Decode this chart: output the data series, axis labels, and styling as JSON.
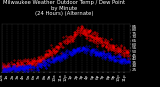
{
  "title_line1": "Milwaukee Weather Outdoor Temp / Dew Point",
  "title_line2": "by Minute",
  "title_line3": "(24 Hours) (Alternate)",
  "bg_color": "#000000",
  "plot_bg_color": "#000000",
  "text_color": "#ffffff",
  "grid_color": "#555555",
  "temp_color": "#ff0000",
  "dew_color": "#0000ff",
  "ylim": [
    22,
    88
  ],
  "ytick_values": [
    25,
    30,
    35,
    40,
    45,
    50,
    55,
    60,
    65,
    70,
    75,
    80,
    85
  ],
  "xlabel_fontsize": 3.0,
  "ylabel_fontsize": 3.0,
  "title_fontsize": 3.8,
  "num_minutes": 1440,
  "seed": 17
}
